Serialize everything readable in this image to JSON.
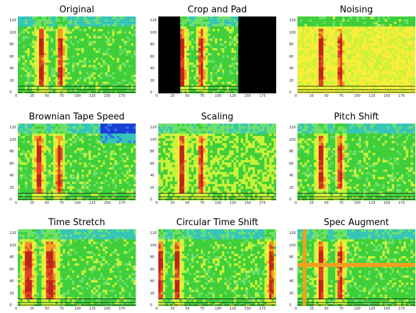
{
  "figure": {
    "colormap": [
      "#1a3fd6",
      "#2f78e8",
      "#36c6b8",
      "#6ee06a",
      "#3fcf3a",
      "#c8f23a",
      "#f7ee3a",
      "#f59a23",
      "#e0452a",
      "#c0241e"
    ]
  },
  "chart_data": [
    {
      "type": "heatmap",
      "title": "Original",
      "xlim": [
        0,
        199
      ],
      "ylim": [
        0,
        128
      ],
      "xticks": [
        0,
        25,
        50,
        75,
        100,
        125,
        150,
        175
      ],
      "yticks": [
        0,
        20,
        40,
        60,
        80,
        100,
        120
      ]
    },
    {
      "type": "heatmap",
      "title": "Crop and Pad",
      "xlim": [
        0,
        199
      ],
      "ylim": [
        0,
        128
      ],
      "xticks": [
        0,
        25,
        50,
        75,
        100,
        125,
        150,
        175
      ],
      "yticks": [
        0,
        20,
        40,
        60,
        80,
        100,
        120
      ],
      "pad_regions_x": [
        [
          0,
          37
        ],
        [
          135,
          199
        ]
      ],
      "pad_color": "#000000"
    },
    {
      "type": "heatmap",
      "title": "Noising",
      "xlim": [
        0,
        199
      ],
      "ylim": [
        0,
        128
      ],
      "xticks": [
        0,
        25,
        50,
        75,
        100,
        125,
        150,
        175
      ],
      "yticks": [
        0,
        20,
        40,
        60,
        80,
        100,
        120
      ]
    },
    {
      "type": "heatmap",
      "title": "Brownian Tape Speed",
      "xlim": [
        0,
        199
      ],
      "ylim": [
        0,
        128
      ],
      "xticks": [
        0,
        25,
        50,
        75,
        100,
        125,
        150,
        175
      ],
      "yticks": [
        0,
        20,
        40,
        60,
        80,
        100,
        120
      ]
    },
    {
      "type": "heatmap",
      "title": "Scaling",
      "xlim": [
        0,
        199
      ],
      "ylim": [
        0,
        128
      ],
      "xticks": [
        0,
        25,
        50,
        75,
        100,
        125,
        150,
        175
      ],
      "yticks": [
        0,
        20,
        40,
        60,
        80,
        100,
        120
      ]
    },
    {
      "type": "heatmap",
      "title": "Pitch Shift",
      "xlim": [
        0,
        199
      ],
      "ylim": [
        0,
        128
      ],
      "xticks": [
        0,
        25,
        50,
        75,
        100,
        125,
        150,
        175
      ],
      "yticks": [
        0,
        20,
        40,
        60,
        80,
        100,
        120
      ]
    },
    {
      "type": "heatmap",
      "title": "Time Stretch",
      "xlim": [
        0,
        199
      ],
      "ylim": [
        0,
        128
      ],
      "xticks": [
        0,
        25,
        50,
        75,
        100,
        125,
        150,
        175
      ],
      "yticks": [
        0,
        20,
        40,
        60,
        80,
        100,
        120
      ]
    },
    {
      "type": "heatmap",
      "title": "Circular Time Shift",
      "xlim": [
        0,
        199
      ],
      "ylim": [
        0,
        128
      ],
      "xticks": [
        0,
        25,
        50,
        75,
        100,
        125,
        150,
        175
      ],
      "yticks": [
        0,
        20,
        40,
        60,
        80,
        100,
        120
      ]
    },
    {
      "type": "heatmap",
      "title": "Spec Augment",
      "xlim": [
        0,
        199
      ],
      "ylim": [
        0,
        128
      ],
      "xticks": [
        0,
        25,
        50,
        75,
        100,
        125,
        150,
        175
      ],
      "yticks": [
        0,
        20,
        40,
        60,
        80,
        100,
        120
      ],
      "time_mask_x": [
        9,
        15
      ],
      "freq_mask_y": [
        65,
        72
      ],
      "mask_color": "#f0a020"
    }
  ]
}
